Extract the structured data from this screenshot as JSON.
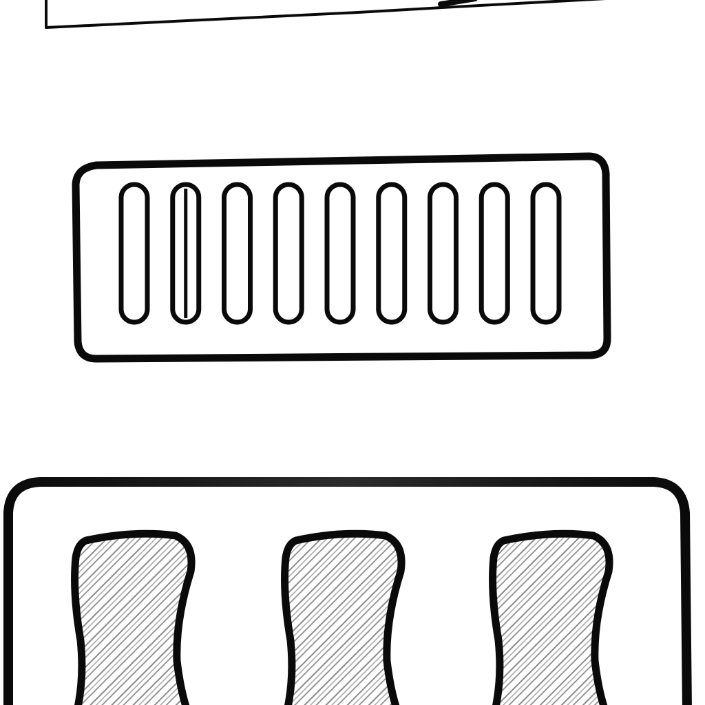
{
  "canvas": {
    "background": "#ffffff",
    "ink": "#0a0a0a",
    "hatch": "#8a8a8a"
  },
  "top_panel": {
    "icon": "rectangle-outline-icon"
  },
  "vent_panel": {
    "icon": "vent-grille-icon",
    "slot_count": 9
  },
  "pad_tray": {
    "icon": "hatched-pads-icon",
    "pad_count": 3
  }
}
